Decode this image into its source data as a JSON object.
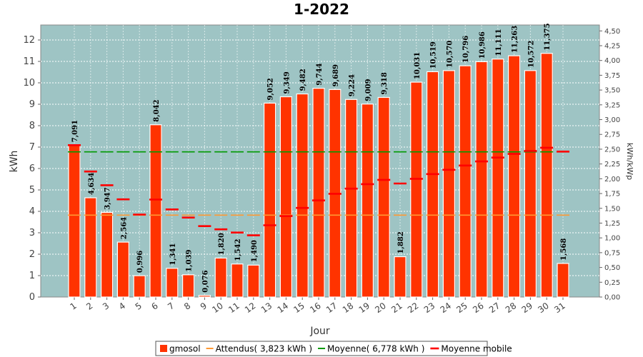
{
  "chart_data": {
    "type": "bar",
    "title": "1-2022",
    "xlabel": "Jour",
    "ylabel": "kWh",
    "ylabel_right": "kWh/kWp",
    "ylim": [
      0,
      12.7
    ],
    "ylim_right": [
      0,
      4.6
    ],
    "yticks": [
      "0",
      "1",
      "2",
      "3",
      "4",
      "5",
      "6",
      "7",
      "8",
      "9",
      "10",
      "11",
      "12"
    ],
    "yticks_right": [
      "0,00",
      "0,25",
      "0,50",
      "0,75",
      "1,00",
      "1,25",
      "1,50",
      "1,75",
      "2,00",
      "2,25",
      "2,50",
      "2,75",
      "3,00",
      "3,25",
      "3,50",
      "3,75",
      "4,00",
      "4,25",
      "4,50"
    ],
    "categories": [
      "1",
      "2",
      "3",
      "4",
      "5",
      "6",
      "7",
      "8",
      "9",
      "10",
      "11",
      "12",
      "13",
      "14",
      "15",
      "16",
      "17",
      "18",
      "19",
      "20",
      "21",
      "22",
      "23",
      "24",
      "25",
      "26",
      "27",
      "28",
      "29",
      "30",
      "31"
    ],
    "series": [
      {
        "name": "gmosol",
        "kind": "bar",
        "color": "#ff3300",
        "values": [
          7.091,
          4.634,
          3.947,
          2.564,
          0.996,
          8.042,
          1.341,
          1.039,
          0.076,
          1.82,
          1.542,
          1.49,
          9.052,
          9.349,
          9.482,
          9.744,
          9.689,
          9.224,
          9.009,
          9.318,
          1.882,
          10.031,
          10.519,
          10.57,
          10.796,
          10.986,
          11.111,
          11.263,
          10.572,
          11.375,
          1.568
        ],
        "labels": [
          "7,091",
          "4,634",
          "3,947",
          "2,564",
          "0,996",
          "8,042",
          "1,341",
          "1,039",
          "0,076",
          "1,820",
          "1,542",
          "1,490",
          "9,052",
          "9,349",
          "9,482",
          "9,744",
          "9,689",
          "9,224",
          "9,009",
          "9,318",
          "1,882",
          "10,031",
          "10,519",
          "10,570",
          "10,796",
          "10,986",
          "11,111",
          "11,263",
          "10,572",
          "11,375",
          "1,568"
        ]
      },
      {
        "name": "Attendus( 3,823 kWh )",
        "kind": "line-dashed",
        "color": "#ff9933",
        "value": 3.823
      },
      {
        "name": "Moyenne( 6,778 kWh )",
        "kind": "line-dashed",
        "color": "#009900",
        "value": 6.778
      },
      {
        "name": "Moyenne mobile",
        "kind": "markers",
        "color": "#ff0000",
        "values": [
          7.09,
          5.86,
          5.22,
          4.56,
          3.85,
          4.55,
          4.09,
          3.71,
          3.31,
          3.16,
          3.01,
          2.88,
          3.35,
          3.78,
          4.16,
          4.51,
          4.82,
          5.06,
          5.27,
          5.47,
          5.3,
          5.52,
          5.74,
          5.94,
          6.14,
          6.33,
          6.51,
          6.68,
          6.82,
          6.97,
          6.79
        ]
      }
    ],
    "colors": {
      "plot_background": "#9ec4c4",
      "grid": "#ffffff"
    },
    "grid": true,
    "legend_position": "bottom"
  }
}
